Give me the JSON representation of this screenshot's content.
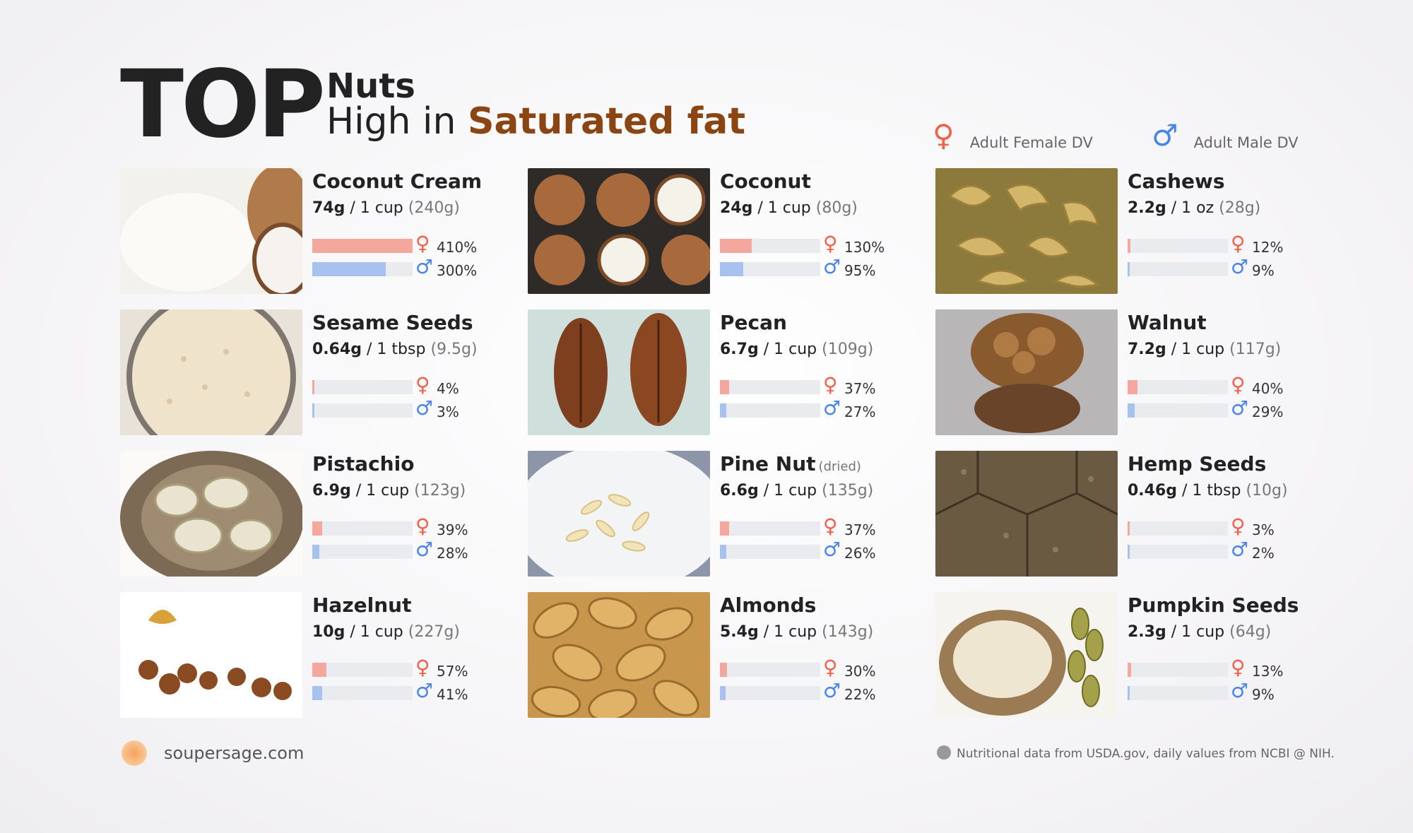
{
  "header": {
    "top": "TOP",
    "line1": "Nuts",
    "line2_prefix": "High in ",
    "line2_highlight": "Saturated fat"
  },
  "legend": {
    "female_label": "Adult Female DV",
    "male_label": "Adult Male DV",
    "female_icon": "female-sign-icon",
    "male_icon": "male-sign-icon"
  },
  "colors": {
    "female": "#f0614d",
    "male": "#4a86e8",
    "female_bar": "#f4a79c",
    "male_bar": "#a8c2ef",
    "highlight": "#8b4513"
  },
  "items": [
    {
      "name": "Coconut Cream",
      "note": "",
      "amount": "74g",
      "serving": " / 1 cup ",
      "grams": "(240g)",
      "female_pct": "410%",
      "male_pct": "300%",
      "female_value": 410,
      "male_value": 300
    },
    {
      "name": "Coconut",
      "note": "",
      "amount": "24g",
      "serving": " / 1 cup ",
      "grams": "(80g)",
      "female_pct": "130%",
      "male_pct": "95%",
      "female_value": 130,
      "male_value": 95
    },
    {
      "name": "Cashews",
      "note": "",
      "amount": "2.2g",
      "serving": " / 1 oz ",
      "grams": "(28g)",
      "female_pct": "12%",
      "male_pct": "9%",
      "female_value": 12,
      "male_value": 9
    },
    {
      "name": "Sesame Seeds",
      "note": "",
      "amount": "0.64g",
      "serving": " / 1 tbsp ",
      "grams": "(9.5g)",
      "female_pct": "4%",
      "male_pct": "3%",
      "female_value": 4,
      "male_value": 3
    },
    {
      "name": "Pecan",
      "note": "",
      "amount": "6.7g",
      "serving": " / 1 cup ",
      "grams": "(109g)",
      "female_pct": "37%",
      "male_pct": "27%",
      "female_value": 37,
      "male_value": 27
    },
    {
      "name": "Walnut",
      "note": "",
      "amount": "7.2g",
      "serving": " / 1 cup ",
      "grams": "(117g)",
      "female_pct": "40%",
      "male_pct": "29%",
      "female_value": 40,
      "male_value": 29
    },
    {
      "name": "Pistachio",
      "note": "",
      "amount": "6.9g",
      "serving": " / 1 cup ",
      "grams": "(123g)",
      "female_pct": "39%",
      "male_pct": "28%",
      "female_value": 39,
      "male_value": 28
    },
    {
      "name": "Pine Nut",
      "note": "(dried)",
      "amount": "6.6g",
      "serving": " / 1 cup ",
      "grams": "(135g)",
      "female_pct": "37%",
      "male_pct": "26%",
      "female_value": 37,
      "male_value": 26
    },
    {
      "name": "Hemp Seeds",
      "note": "",
      "amount": "0.46g",
      "serving": " / 1 tbsp ",
      "grams": "(10g)",
      "female_pct": "3%",
      "male_pct": "2%",
      "female_value": 3,
      "male_value": 2
    },
    {
      "name": "Hazelnut",
      "note": "",
      "amount": "10g",
      "serving": " / 1 cup ",
      "grams": "(227g)",
      "female_pct": "57%",
      "male_pct": "41%",
      "female_value": 57,
      "male_value": 41
    },
    {
      "name": "Almonds",
      "note": "",
      "amount": "5.4g",
      "serving": " / 1 cup ",
      "grams": "(143g)",
      "female_pct": "30%",
      "male_pct": "22%",
      "female_value": 30,
      "male_value": 22
    },
    {
      "name": "Pumpkin Seeds",
      "note": "",
      "amount": "2.3g",
      "serving": " / 1 cup ",
      "grams": "(64g)",
      "female_pct": "13%",
      "male_pct": "9%",
      "female_value": 13,
      "male_value": 9
    }
  ],
  "footer": {
    "logo_icon": "soupersage-logo-icon",
    "site": "soupersage.com",
    "note": "Nutritional data from USDA.gov, daily values from NCBI @ NIH."
  }
}
